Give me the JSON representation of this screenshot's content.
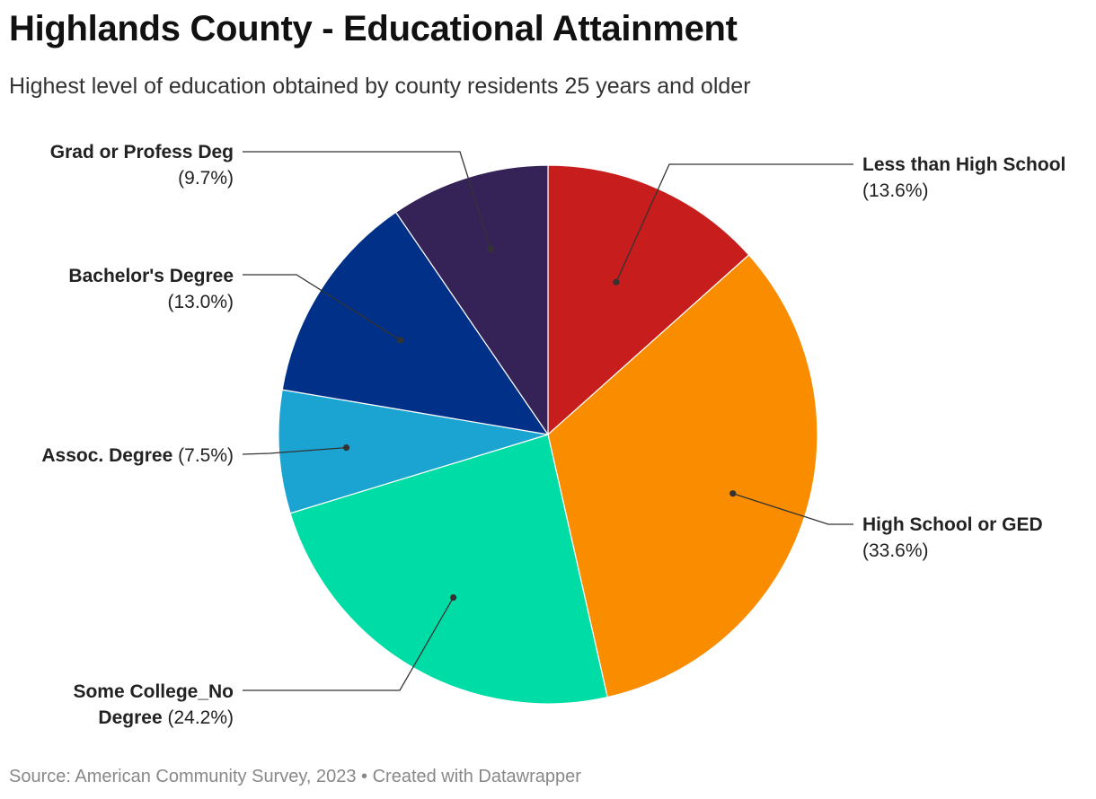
{
  "title": "Highlands County - Educational Attainment",
  "subtitle": "Highest level of education obtained by county residents 25 years and older",
  "footer": {
    "source": "Source: American Community Survey, 2023",
    "separator": " • ",
    "credit": "Created with Datawrapper"
  },
  "chart_data": {
    "type": "pie",
    "title": "Highlands County - Educational Attainment",
    "subtitle": "Highest level of education obtained by county residents 25 years and older",
    "slices": [
      {
        "label": "Less than High School",
        "value": 13.6,
        "display": "(13.6%)",
        "color": "#c71e1d"
      },
      {
        "label": "High School or GED",
        "value": 33.6,
        "display": "(33.6%)",
        "color": "#fa8c00"
      },
      {
        "label": "Some College_No Degree",
        "value": 24.2,
        "display": "(24.2%)",
        "color": "#00dca6"
      },
      {
        "label": "Assoc. Degree",
        "value": 7.5,
        "display": "(7.5%)",
        "color": "#1ba3d1"
      },
      {
        "label": "Bachelor's Degree",
        "value": 13.0,
        "display": "(13.0%)",
        "color": "#003087"
      },
      {
        "label": "Grad or Profess Deg",
        "value": 9.7,
        "display": "(9.7%)",
        "color": "#352357"
      }
    ],
    "start_angle": "12 o'clock",
    "direction": "clockwise"
  }
}
